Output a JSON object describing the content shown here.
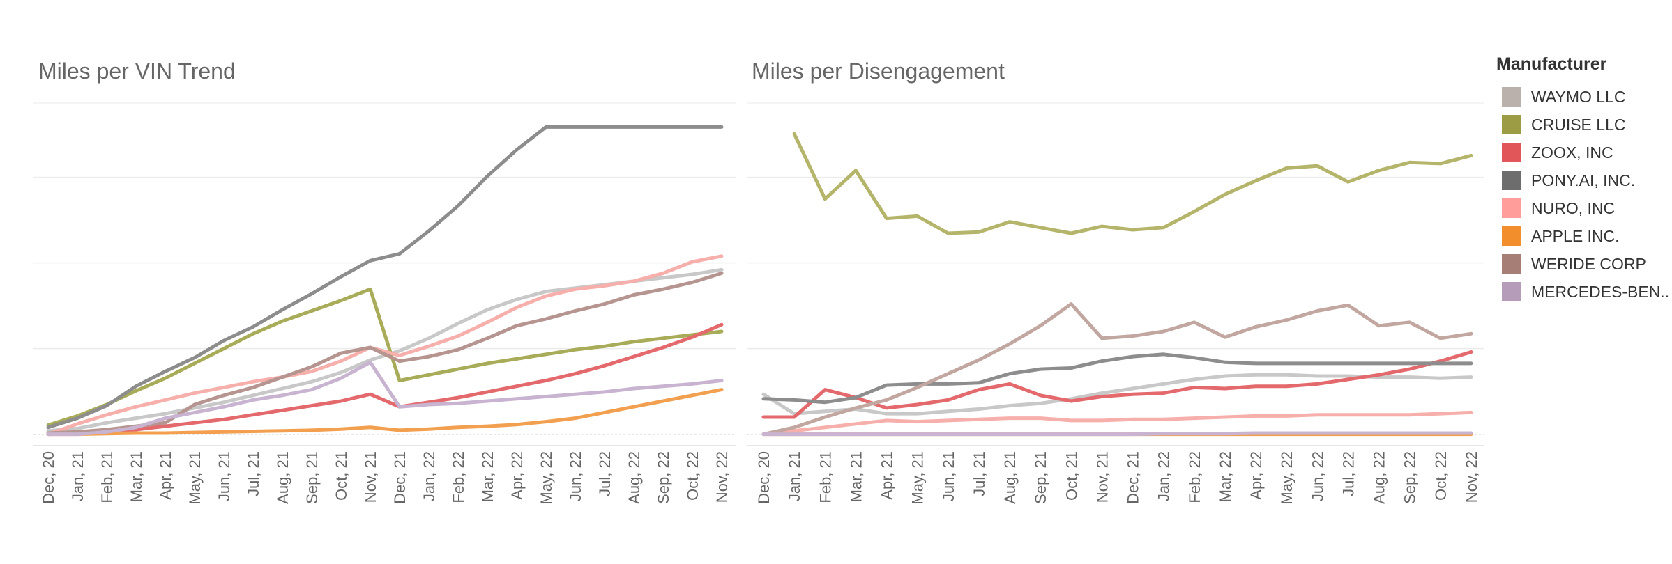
{
  "legend": {
    "title": "Manufacturer",
    "items": [
      {
        "label": "WAYMO LLC",
        "color": "#BAB0AC"
      },
      {
        "label": "CRUISE LLC",
        "color": "#9C9C45"
      },
      {
        "label": "ZOOX, INC",
        "color": "#E15759"
      },
      {
        "label": "PONY.AI, INC.",
        "color": "#6D6D6D"
      },
      {
        "label": "NURO, INC",
        "color": "#FF9D9A"
      },
      {
        "label": "APPLE INC.",
        "color": "#F28E2B"
      },
      {
        "label": "WERIDE CORP",
        "color": "#A77E76"
      },
      {
        "label": "MERCEDES-BEN..",
        "color": "#B59CB9"
      }
    ]
  },
  "chart_data": [
    {
      "type": "line",
      "title": "Miles per VIN Trend",
      "xlabel": "",
      "ylabel": "",
      "grid": true,
      "ylim": [
        -1,
        29
      ],
      "x": [
        "Dec, 20",
        "Jan, 21",
        "Feb, 21",
        "Mar, 21",
        "Apr, 21",
        "May, 21",
        "Jun, 21",
        "Jul, 21",
        "Aug, 21",
        "Sep, 21",
        "Oct, 21",
        "Nov, 21",
        "Dec, 21",
        "Jan, 22",
        "Feb, 22",
        "Mar, 22",
        "Apr, 22",
        "May, 22",
        "Jun, 22",
        "Jul, 22",
        "Aug, 22",
        "Sep, 22",
        "Oct, 22",
        "Nov, 22"
      ],
      "series": [
        {
          "name": "WAYMO LLC",
          "color": "#C8C8C8",
          "values": [
            0.3,
            0.5,
            1.0,
            1.4,
            1.8,
            2.3,
            2.8,
            3.4,
            4.0,
            4.6,
            5.4,
            6.5,
            7.3,
            8.4,
            9.7,
            10.9,
            11.8,
            12.5,
            12.8,
            13.1,
            13.4,
            13.7,
            14.0,
            14.4
          ]
        },
        {
          "name": "CRUISE LLC",
          "color": "#A8AC58",
          "values": [
            0.8,
            1.6,
            2.6,
            3.8,
            4.9,
            6.2,
            7.5,
            8.8,
            9.9,
            10.8,
            11.7,
            12.7,
            4.7,
            5.2,
            5.7,
            6.2,
            6.6,
            7.0,
            7.4,
            7.7,
            8.1,
            8.4,
            8.7,
            9.0
          ]
        },
        {
          "name": "ZOOX, INC",
          "color": "#E3696C",
          "values": [
            0.0,
            0.1,
            0.2,
            0.4,
            0.7,
            1.0,
            1.3,
            1.7,
            2.1,
            2.5,
            2.9,
            3.5,
            2.4,
            2.8,
            3.2,
            3.7,
            4.2,
            4.7,
            5.3,
            6.0,
            6.8,
            7.6,
            8.5,
            9.6
          ]
        },
        {
          "name": "PONY.AI, INC.",
          "color": "#8D8D8D",
          "values": [
            0.6,
            1.4,
            2.5,
            4.2,
            5.5,
            6.7,
            8.2,
            9.4,
            10.9,
            12.3,
            13.8,
            15.2,
            15.8,
            17.8,
            20.0,
            22.6,
            24.9,
            26.9,
            26.9,
            26.9,
            26.9,
            26.9,
            26.9,
            26.9
          ]
        },
        {
          "name": "NURO, INC",
          "color": "#F7AFAB",
          "values": [
            0.0,
            0.9,
            1.7,
            2.4,
            3.0,
            3.6,
            4.1,
            4.6,
            5.0,
            5.5,
            6.4,
            7.6,
            6.9,
            7.7,
            8.6,
            9.8,
            11.1,
            12.1,
            12.7,
            13.0,
            13.4,
            14.1,
            15.1,
            15.6
          ]
        },
        {
          "name": "APPLE INC.",
          "color": "#F2A04F",
          "values": [
            0.0,
            0.0,
            0.05,
            0.1,
            0.1,
            0.15,
            0.2,
            0.25,
            0.3,
            0.35,
            0.45,
            0.6,
            0.35,
            0.45,
            0.6,
            0.7,
            0.85,
            1.1,
            1.4,
            1.9,
            2.4,
            2.9,
            3.4,
            3.9
          ]
        },
        {
          "name": "WERIDE CORP",
          "color": "#B69590",
          "values": [
            0.1,
            0.2,
            0.4,
            0.7,
            1.0,
            2.6,
            3.4,
            4.1,
            5.0,
            5.9,
            7.1,
            7.6,
            6.4,
            6.8,
            7.4,
            8.4,
            9.5,
            10.1,
            10.8,
            11.4,
            12.2,
            12.7,
            13.3,
            14.1
          ]
        },
        {
          "name": "MERCEDES-BENZ",
          "color": "#C8B4D0",
          "values": [
            0.0,
            0.0,
            0.2,
            0.6,
            1.4,
            1.9,
            2.4,
            3.0,
            3.4,
            3.9,
            4.9,
            6.3,
            2.4,
            2.6,
            2.7,
            2.9,
            3.1,
            3.3,
            3.5,
            3.7,
            4.0,
            4.2,
            4.4,
            4.7
          ]
        }
      ]
    },
    {
      "type": "line",
      "title": "Miles per Disengagement",
      "xlabel": "",
      "ylabel": "",
      "grid": true,
      "ylim": [
        -1,
        29
      ],
      "x": [
        "Dec, 20",
        "Jan, 21",
        "Feb, 21",
        "Mar, 21",
        "Apr, 21",
        "May, 21",
        "Jun, 21",
        "Jul, 21",
        "Aug, 21",
        "Sep, 21",
        "Oct, 21",
        "Nov, 21",
        "Dec, 21",
        "Jan, 22",
        "Feb, 22",
        "Mar, 22",
        "Apr, 22",
        "May, 22",
        "Jun, 22",
        "Jul, 22",
        "Aug, 22",
        "Sep, 22",
        "Oct, 22",
        "Nov, 22"
      ],
      "series": [
        {
          "name": "WAYMO LLC",
          "color": "#C8C8C8",
          "values": [
            3.5,
            1.8,
            2.0,
            2.2,
            1.8,
            1.8,
            2.0,
            2.2,
            2.5,
            2.7,
            3.1,
            3.6,
            4.0,
            4.4,
            4.8,
            5.1,
            5.2,
            5.2,
            5.1,
            5.1,
            5.0,
            5.0,
            4.9,
            5.0
          ]
        },
        {
          "name": "CRUISE LLC",
          "color": "#B4B46A",
          "values": [
            null,
            26.3,
            20.6,
            23.1,
            18.9,
            19.1,
            17.6,
            17.7,
            18.6,
            18.1,
            17.6,
            18.2,
            17.9,
            18.1,
            19.5,
            21.0,
            22.2,
            23.3,
            23.5,
            22.1,
            23.1,
            23.8,
            23.7,
            24.4
          ]
        },
        {
          "name": "ZOOX, INC",
          "color": "#E3696C",
          "values": [
            1.5,
            1.5,
            3.9,
            3.2,
            2.3,
            2.6,
            3.0,
            3.9,
            4.4,
            3.4,
            2.9,
            3.3,
            3.5,
            3.6,
            4.1,
            4.0,
            4.2,
            4.2,
            4.4,
            4.8,
            5.2,
            5.7,
            6.4,
            7.2
          ]
        },
        {
          "name": "PONY.AI, INC.",
          "color": "#8D8D8D",
          "values": [
            3.1,
            3.0,
            2.8,
            3.2,
            4.3,
            4.4,
            4.4,
            4.5,
            5.3,
            5.7,
            5.8,
            6.4,
            6.8,
            7.0,
            6.7,
            6.3,
            6.2,
            6.2,
            6.2,
            6.2,
            6.2,
            6.2,
            6.2,
            6.2
          ]
        },
        {
          "name": "NURO, INC",
          "color": "#F7AFAB",
          "values": [
            0.0,
            0.3,
            0.6,
            0.9,
            1.2,
            1.1,
            1.2,
            1.3,
            1.4,
            1.4,
            1.2,
            1.2,
            1.3,
            1.3,
            1.4,
            1.5,
            1.6,
            1.6,
            1.7,
            1.7,
            1.7,
            1.7,
            1.8,
            1.9
          ]
        },
        {
          "name": "APPLE INC.",
          "color": "#F2A04F",
          "values": [
            0.0,
            0.0,
            0.0,
            0.0,
            0.0,
            0.0,
            0.0,
            0.0,
            0.0,
            0.0,
            0.0,
            0.0,
            0.0,
            0.0,
            0.0,
            0.0,
            0.0,
            0.0,
            0.0,
            0.0,
            0.0,
            0.0,
            0.0,
            0.0
          ]
        },
        {
          "name": "WERIDE CORP",
          "color": "#C2A7A1",
          "values": [
            0.0,
            0.6,
            1.5,
            2.3,
            3.0,
            4.1,
            5.3,
            6.5,
            7.9,
            9.5,
            11.4,
            8.4,
            8.6,
            9.0,
            9.8,
            8.5,
            9.4,
            10.0,
            10.8,
            11.3,
            9.5,
            9.8,
            8.4,
            8.8
          ]
        },
        {
          "name": "MERCEDES-BENZ",
          "color": "#C8B4D0",
          "values": [
            0.0,
            0.0,
            0.0,
            0.0,
            0.0,
            0.0,
            0.0,
            0.0,
            0.0,
            0.0,
            0.0,
            0.0,
            0.0,
            0.05,
            0.05,
            0.05,
            0.1,
            0.1,
            0.1,
            0.1,
            0.1,
            0.1,
            0.1,
            0.1
          ]
        }
      ]
    }
  ]
}
